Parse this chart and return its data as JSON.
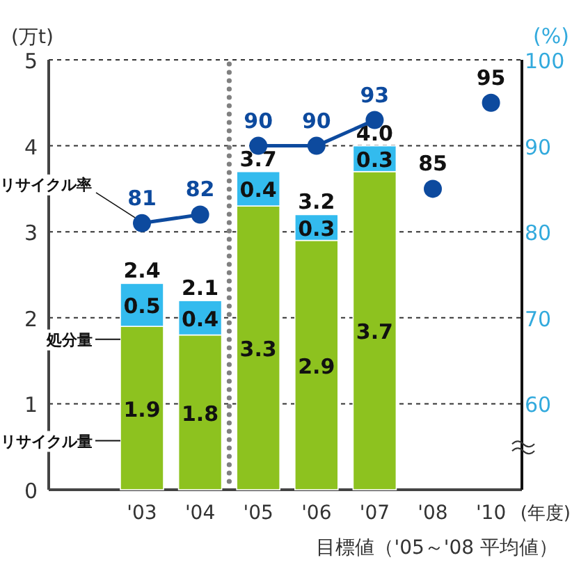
{
  "chart_data": {
    "type": "bar",
    "stacked": true,
    "ylabel": "(万t)",
    "y2label": "(%)",
    "xlabel": "(年度)",
    "categories": [
      "'03",
      "'04",
      "'05",
      "'06",
      "'07",
      "'08",
      "'10"
    ],
    "ylim": [
      0,
      5
    ],
    "yticks": [
      0,
      1,
      2,
      3,
      4,
      5
    ],
    "y2lim": [
      50,
      100
    ],
    "y2ticks": [
      60,
      70,
      80,
      90,
      100
    ],
    "grid": "y",
    "legend": false,
    "data_labels": true,
    "totals": [
      "2.4",
      "2.1",
      "3.7",
      "3.2",
      "4.0",
      null,
      null
    ],
    "series": [
      {
        "name": "リサイクル量",
        "color": "#8dc21f",
        "values": [
          1.9,
          1.8,
          3.3,
          2.9,
          3.7,
          null,
          null
        ]
      },
      {
        "name": "処分量",
        "color": "#33bbee",
        "values": [
          0.5,
          0.4,
          0.4,
          0.3,
          0.3,
          null,
          null
        ]
      },
      {
        "name": "リサイクル率",
        "type": "line",
        "axis": "y2",
        "color": "#0d4a9e",
        "marker": "circle",
        "values": [
          81,
          82,
          null,
          null,
          null,
          null,
          null
        ]
      },
      {
        "type": "line",
        "axis": "y2",
        "color": "#0d4a9e",
        "marker": "circle",
        "values": [
          null,
          null,
          90,
          90,
          93,
          null,
          null
        ]
      },
      {
        "type": "scatter",
        "axis": "y2",
        "color": "#0d4a9e",
        "marker": "circle",
        "values": [
          null,
          null,
          null,
          null,
          null,
          85,
          95
        ]
      }
    ],
    "annotations": [
      "目標値（'05～'08 平均値）"
    ]
  }
}
